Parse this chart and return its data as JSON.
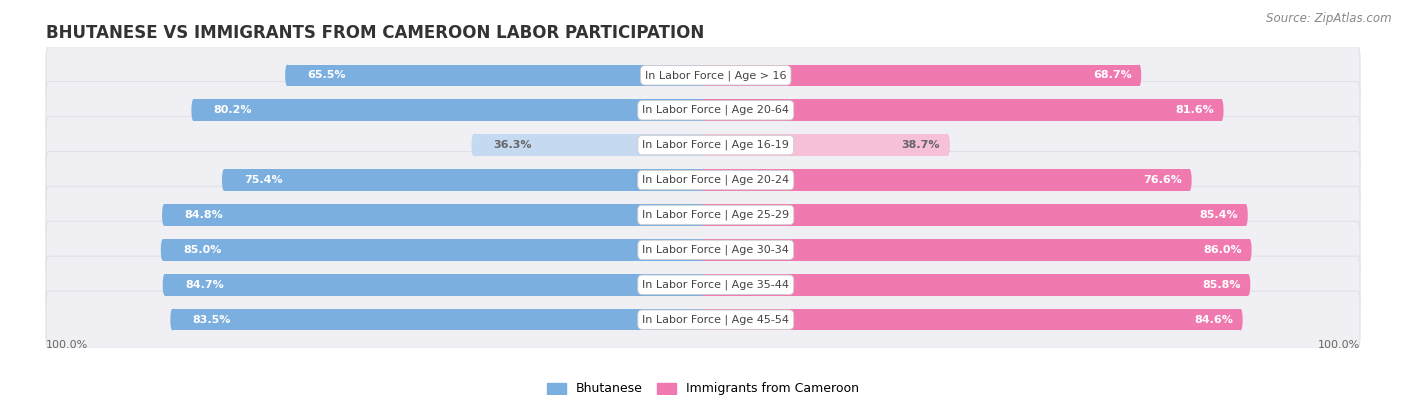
{
  "title": "BHUTANESE VS IMMIGRANTS FROM CAMEROON LABOR PARTICIPATION",
  "source": "Source: ZipAtlas.com",
  "categories": [
    "In Labor Force | Age > 16",
    "In Labor Force | Age 20-64",
    "In Labor Force | Age 16-19",
    "In Labor Force | Age 20-24",
    "In Labor Force | Age 25-29",
    "In Labor Force | Age 30-34",
    "In Labor Force | Age 35-44",
    "In Labor Force | Age 45-54"
  ],
  "bhutanese": [
    65.5,
    80.2,
    36.3,
    75.4,
    84.8,
    85.0,
    84.7,
    83.5
  ],
  "cameroon": [
    68.7,
    81.6,
    38.7,
    76.6,
    85.4,
    86.0,
    85.8,
    84.6
  ],
  "blue_color": "#7aafe0",
  "blue_light": "#c5d9f0",
  "pink_color": "#f07ab0",
  "pink_light": "#f5c0d8",
  "row_bg": "#f0f0f4",
  "row_border": "#e0e0e8",
  "legend_blue": "#7aafe0",
  "legend_pink": "#f07ab0",
  "label_blue": "Bhutanese",
  "label_pink": "Immigrants from Cameroon",
  "title_fontsize": 12,
  "source_fontsize": 8.5,
  "bar_label_fontsize": 8,
  "category_fontsize": 8,
  "axis_label_fontsize": 8
}
